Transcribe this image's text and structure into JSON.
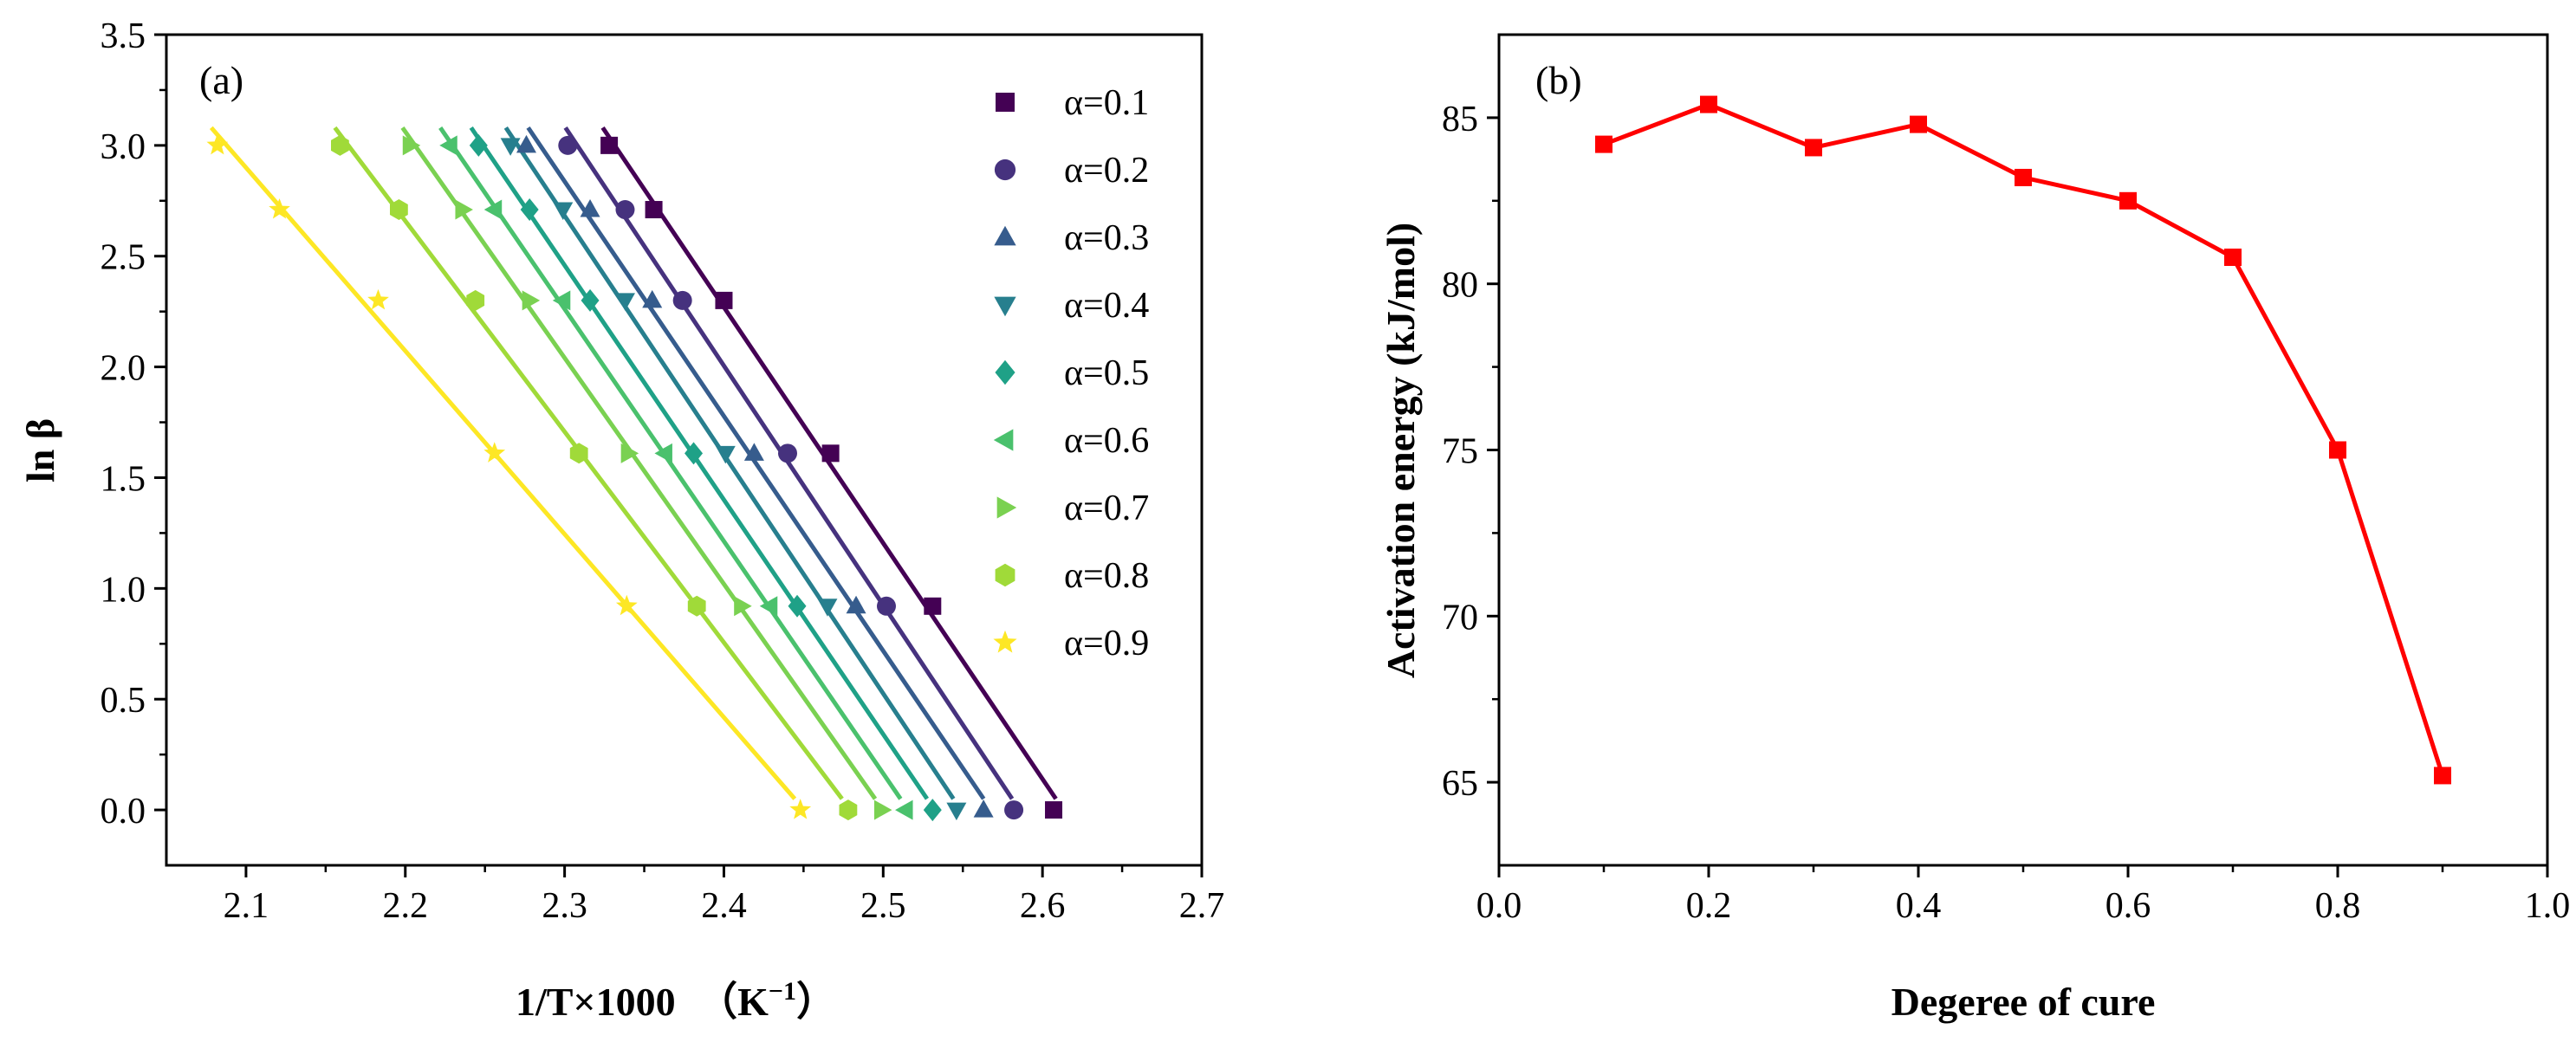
{
  "chart_data": [
    {
      "type": "scatter",
      "panel_label": "(a)",
      "xlabel": "1/T×1000",
      "xlabel_unit": "（K",
      "xlabel_unit_sup": "−1",
      "xlabel_unit_close": "）",
      "ylabel": "ln β",
      "xlim": [
        2.05,
        2.7
      ],
      "ylim": [
        -0.25,
        3.5
      ],
      "xticks": [
        "2.1",
        "2.2",
        "2.3",
        "2.4",
        "2.5",
        "2.6",
        "2.7"
      ],
      "yticks": [
        "0.0",
        "0.5",
        "1.0",
        "1.5",
        "2.0",
        "2.5",
        "3.0",
        "3.5"
      ],
      "legend_position": "top-right",
      "y_values": [
        3.0,
        2.71,
        2.3,
        1.61,
        0.92,
        0.0
      ],
      "series": [
        {
          "name": "α=0.1",
          "marker": "square",
          "color": "#440154",
          "x": [
            2.328,
            2.356,
            2.4,
            2.467,
            2.531,
            2.607
          ]
        },
        {
          "name": "α=0.2",
          "marker": "circle",
          "color": "#46327e",
          "x": [
            2.302,
            2.338,
            2.374,
            2.44,
            2.502,
            2.582
          ]
        },
        {
          "name": "α=0.3",
          "marker": "triangle-up",
          "color": "#365c8d",
          "x": [
            2.276,
            2.316,
            2.355,
            2.419,
            2.483,
            2.563
          ]
        },
        {
          "name": "α=0.4",
          "marker": "triangle-down",
          "color": "#277f8e",
          "x": [
            2.266,
            2.299,
            2.338,
            2.401,
            2.465,
            2.546
          ]
        },
        {
          "name": "α=0.5",
          "marker": "diamond",
          "color": "#1fa187",
          "x": [
            2.246,
            2.278,
            2.316,
            2.381,
            2.446,
            2.531
          ]
        },
        {
          "name": "α=0.6",
          "marker": "triangle-left",
          "color": "#4ac16d",
          "x": [
            2.228,
            2.256,
            2.299,
            2.363,
            2.429,
            2.514
          ]
        },
        {
          "name": "α=0.7",
          "marker": "triangle-right",
          "color": "#7ad151",
          "x": [
            2.203,
            2.236,
            2.278,
            2.34,
            2.411,
            2.499
          ]
        },
        {
          "name": "α=0.8",
          "marker": "hexagon",
          "color": "#a0da39",
          "x": [
            2.159,
            2.196,
            2.244,
            2.309,
            2.383,
            2.478
          ]
        },
        {
          "name": "α=0.9",
          "marker": "star",
          "color": "#fde725",
          "x": [
            2.082,
            2.121,
            2.183,
            2.256,
            2.339,
            2.448
          ]
        }
      ]
    },
    {
      "type": "line",
      "panel_label": "(b)",
      "xlabel": "Degeree of cure",
      "ylabel": "Activation energy (kJ/mol)",
      "xlim": [
        0.0,
        1.0
      ],
      "ylim": [
        62.5,
        87.5
      ],
      "xticks": [
        "0.0",
        "0.2",
        "0.4",
        "0.6",
        "0.8",
        "1.0"
      ],
      "yticks": [
        "65",
        "70",
        "75",
        "80",
        "85"
      ],
      "color": "#ff0000",
      "x": [
        0.1,
        0.2,
        0.3,
        0.4,
        0.5,
        0.6,
        0.7,
        0.8,
        0.9
      ],
      "values": [
        84.2,
        85.4,
        84.1,
        84.8,
        83.2,
        82.5,
        80.8,
        75.0,
        65.2
      ]
    }
  ]
}
